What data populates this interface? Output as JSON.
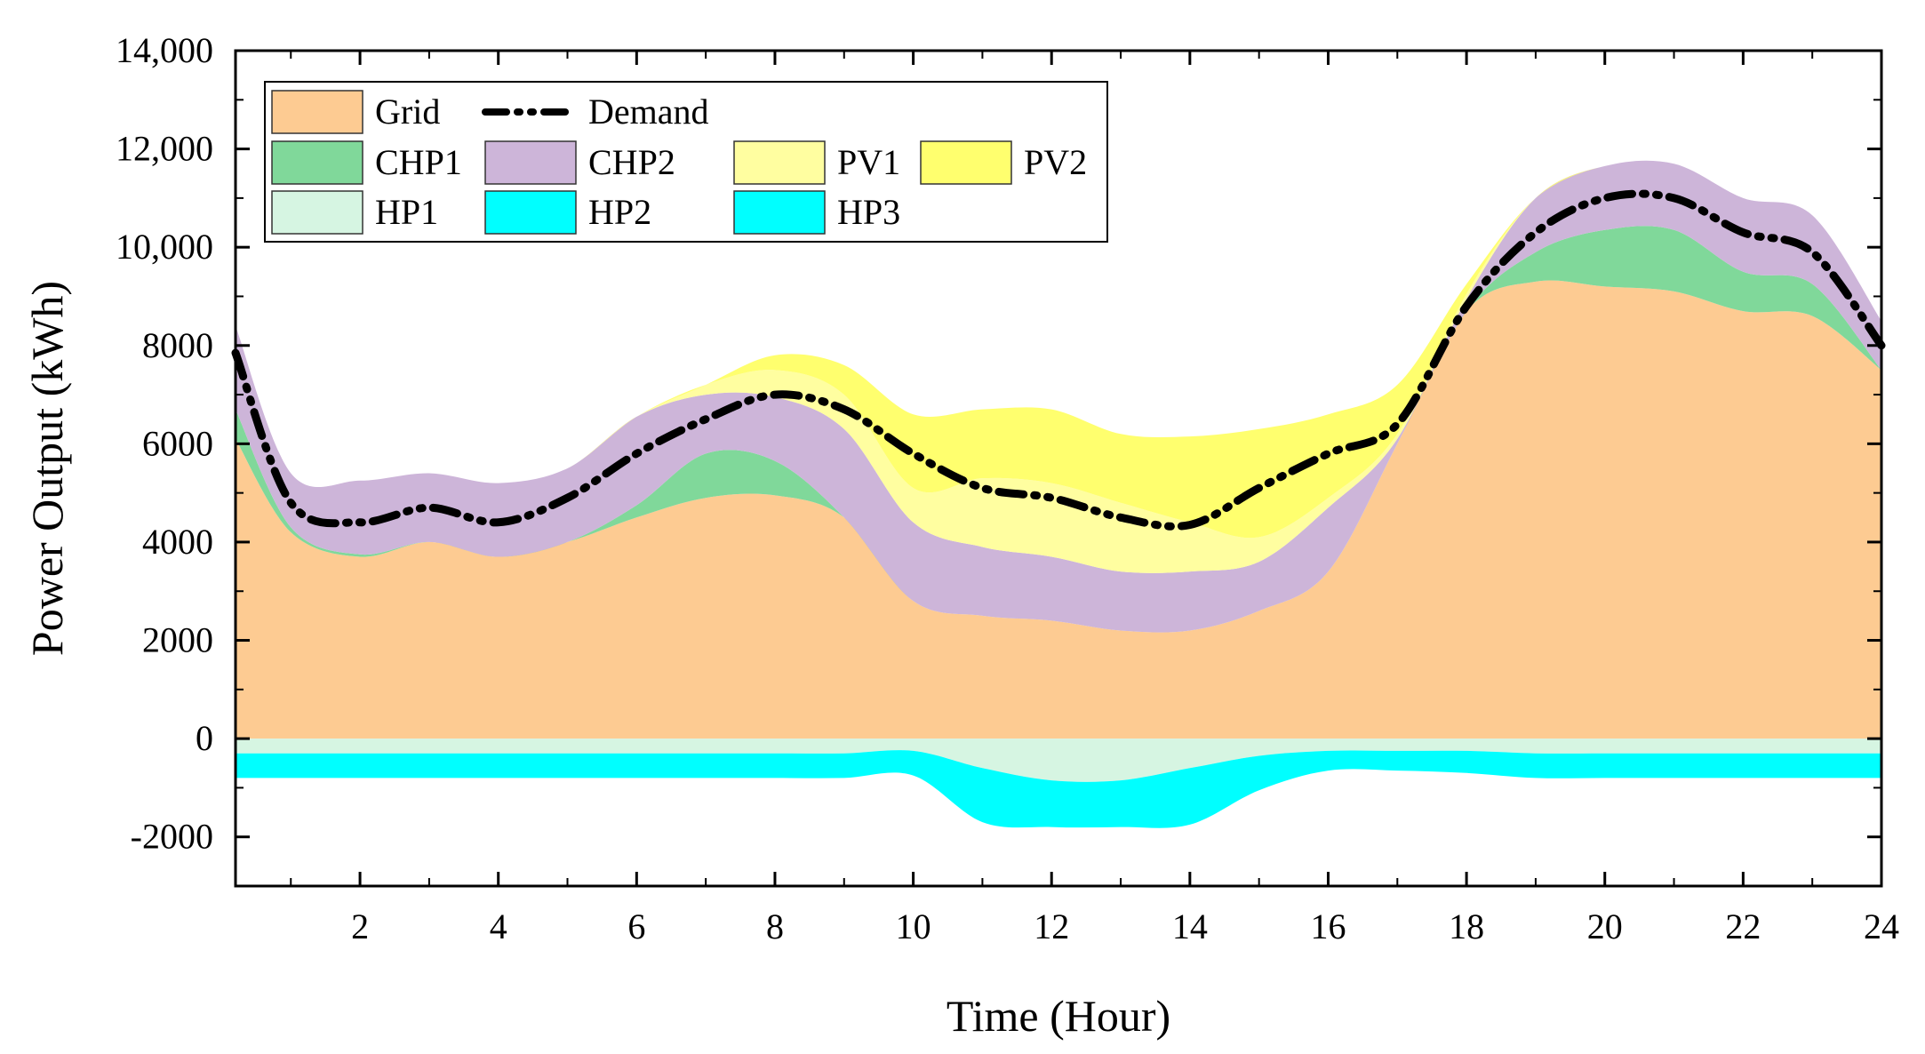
{
  "chart_data": {
    "type": "area",
    "title": "",
    "xlabel": "Time (Hour)",
    "ylabel": "Power Output (kWh)",
    "xlim": [
      0.2,
      24
    ],
    "ylim": [
      -3000,
      14000
    ],
    "xticks": [
      2,
      4,
      6,
      8,
      10,
      12,
      14,
      16,
      18,
      20,
      22,
      24
    ],
    "xtick_labels": [
      "2",
      "4",
      "6",
      "8",
      "10",
      "12",
      "14",
      "16",
      "18",
      "20",
      "22",
      "24"
    ],
    "yticks": [
      -2000,
      0,
      2000,
      4000,
      6000,
      8000,
      10000,
      12000,
      14000
    ],
    "ytick_labels": [
      "-2000",
      "0",
      "2000",
      "4000",
      "6000",
      "8000",
      "10,000",
      "12,000",
      "14,000"
    ],
    "x": [
      0.2,
      1,
      2,
      3,
      4,
      5,
      6,
      7,
      8,
      9,
      10,
      11,
      12,
      13,
      14,
      15,
      16,
      17,
      18,
      19,
      20,
      21,
      22,
      23,
      24
    ],
    "series": [
      {
        "name": "Grid",
        "color": "#FDCB92",
        "stack": "pos",
        "values": [
          6100,
          4200,
          3700,
          4000,
          3700,
          4000,
          4500,
          4900,
          4950,
          4500,
          2800,
          2500,
          2400,
          2200,
          2200,
          2600,
          3400,
          6000,
          8700,
          9300,
          9200,
          9100,
          8700,
          8600,
          7500
        ]
      },
      {
        "name": "CHP1",
        "color": "#80D89A",
        "stack": "pos",
        "values": [
          600,
          100,
          50,
          0,
          0,
          0,
          250,
          900,
          700,
          0,
          0,
          0,
          0,
          0,
          0,
          0,
          0,
          0,
          0,
          600,
          1150,
          1250,
          800,
          650,
          0
        ]
      },
      {
        "name": "CHP2",
        "color": "#CDB5D9",
        "stack": "pos",
        "values": [
          1700,
          1100,
          1500,
          1400,
          1500,
          1500,
          1800,
          1200,
          1300,
          1800,
          1600,
          1400,
          1300,
          1200,
          1200,
          1000,
          1300,
          100,
          250,
          1100,
          1300,
          1350,
          1500,
          1400,
          1000
        ]
      },
      {
        "name": "PV1",
        "color": "#FFFEA0",
        "stack": "pos",
        "values": [
          0,
          0,
          0,
          0,
          0,
          0,
          0,
          200,
          550,
          700,
          700,
          1400,
          1500,
          1400,
          1000,
          500,
          200,
          100,
          100,
          0,
          0,
          0,
          0,
          0,
          0
        ]
      },
      {
        "name": "PV2",
        "color": "#FFFF6E",
        "stack": "pos",
        "values": [
          0,
          0,
          0,
          0,
          0,
          0,
          0,
          0,
          300,
          600,
          1500,
          1400,
          1500,
          1400,
          1750,
          2200,
          1700,
          1000,
          200,
          0,
          0,
          0,
          0,
          0,
          0
        ]
      },
      {
        "name": "HP1",
        "color": "#D6F5E2",
        "stack": "neg",
        "values": [
          -300,
          -300,
          -300,
          -300,
          -300,
          -300,
          -300,
          -300,
          -300,
          -300,
          -250,
          -600,
          -850,
          -850,
          -600,
          -350,
          -250,
          -250,
          -250,
          -300,
          -300,
          -300,
          -300,
          -300,
          -300
        ]
      },
      {
        "name": "HP2",
        "color": "#00FFFF",
        "stack": "neg",
        "values": [
          -500,
          -500,
          -500,
          -500,
          -500,
          -500,
          -500,
          -500,
          -500,
          -500,
          -500,
          -1100,
          -950,
          -950,
          -1150,
          -700,
          -400,
          -400,
          -450,
          -500,
          -500,
          -500,
          -500,
          -500,
          -500
        ]
      },
      {
        "name": "HP3",
        "color": "#00FFFF",
        "stack": "neg",
        "values": [
          0,
          0,
          0,
          0,
          0,
          0,
          0,
          0,
          0,
          0,
          0,
          0,
          0,
          0,
          0,
          0,
          0,
          0,
          0,
          0,
          0,
          0,
          0,
          0,
          0
        ]
      },
      {
        "name": "Demand",
        "type": "line",
        "color": "#000000",
        "dash": "dash-dot-dot",
        "values": [
          7850,
          4800,
          4400,
          4700,
          4400,
          4900,
          5800,
          6500,
          7000,
          6700,
          5800,
          5100,
          4900,
          4500,
          4350,
          5100,
          5800,
          6400,
          8800,
          10300,
          11000,
          11000,
          10300,
          9900,
          8000
        ]
      }
    ],
    "legend": {
      "position": "top-left",
      "entries": [
        "Grid",
        "Demand",
        "CHP1",
        "CHP2",
        "PV1",
        "PV2",
        "HP1",
        "HP2",
        "HP3"
      ]
    },
    "grid": false
  }
}
